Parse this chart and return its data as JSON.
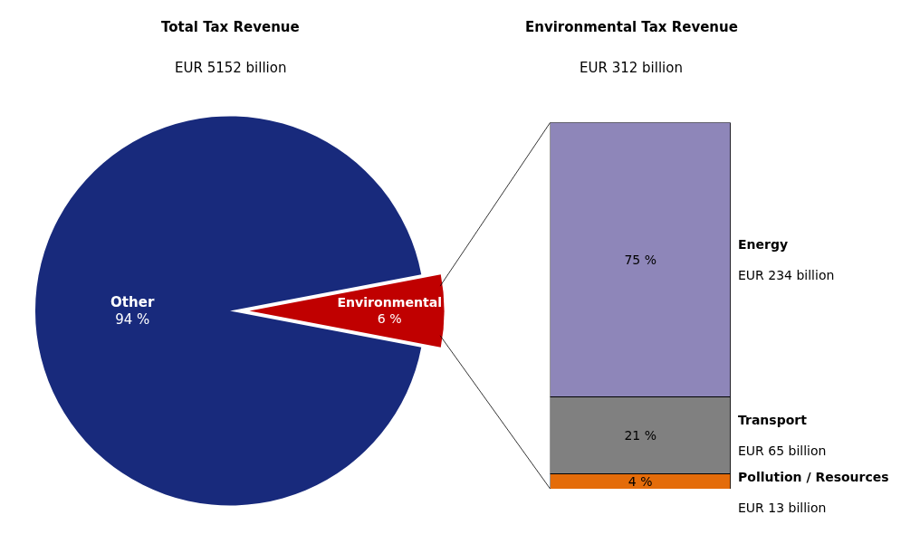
{
  "chart_data": [
    {
      "type": "pie",
      "title": "Total Tax Revenue",
      "subtitle": "EUR 5152 billion",
      "categories": [
        "Other",
        "Environmental"
      ],
      "values": [
        94,
        6
      ],
      "colors": [
        "#182a7c",
        "#c00000"
      ],
      "value_labels": [
        "94 %",
        "6 %"
      ]
    },
    {
      "type": "bar",
      "title": "Environmental Tax Revenue",
      "subtitle": "EUR 312 billion",
      "categories": [
        null
      ],
      "stacked": true,
      "tick_labels": false,
      "annotations": [
        "EUR 13 billion",
        "EUR 65 billion",
        "EUR 234 billion"
      ],
      "series": [
        {
          "name": "Pollution / Resources",
          "color": "#e46c0a",
          "values": [
            4
          ],
          "value_labels": [
            "4 %"
          ]
        },
        {
          "name": "Transport",
          "color": "#808080",
          "values": [
            21
          ],
          "value_labels": [
            "21 %"
          ]
        },
        {
          "name": "Energy",
          "color": "#8e86b9",
          "values": [
            75
          ],
          "value_labels": [
            "75 %"
          ]
        }
      ]
    }
  ]
}
